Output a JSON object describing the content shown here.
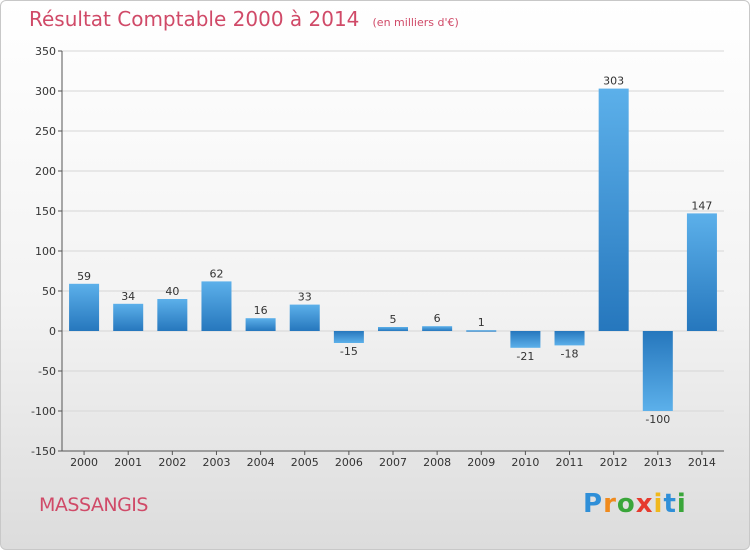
{
  "chart_data": {
    "type": "bar",
    "title": "Résultat Comptable 2000 à 2014",
    "subtitle": "(en milliers d'€)",
    "categories": [
      "2000",
      "2001",
      "2002",
      "2003",
      "2004",
      "2005",
      "2006",
      "2007",
      "2008",
      "2009",
      "2010",
      "2011",
      "2012",
      "2013",
      "2014"
    ],
    "values": [
      59,
      34,
      40,
      62,
      16,
      33,
      -15,
      5,
      6,
      1,
      -21,
      -18,
      303,
      -100,
      147
    ],
    "data_labels": [
      "59",
      "34",
      "40",
      "62",
      "16",
      "33",
      "-15",
      "5",
      "6",
      "1",
      "-21",
      "-18",
      "303",
      "-100",
      "147"
    ],
    "ylim": [
      -150,
      350
    ],
    "yticks": [
      -150,
      -100,
      -50,
      0,
      50,
      100,
      150,
      200,
      250,
      300,
      350
    ],
    "grid": true,
    "bar_color": "#3a8fd0"
  },
  "place_name": "MASSANGIS",
  "logo": {
    "letters": [
      "P",
      "r",
      "o",
      "x",
      "i",
      "t",
      "i"
    ],
    "colors": [
      "#2f8fd8",
      "#f08a1c",
      "#3aa63a",
      "#e63b2e",
      "#f0b81c",
      "#2f8fd8",
      "#3aa63a"
    ]
  }
}
